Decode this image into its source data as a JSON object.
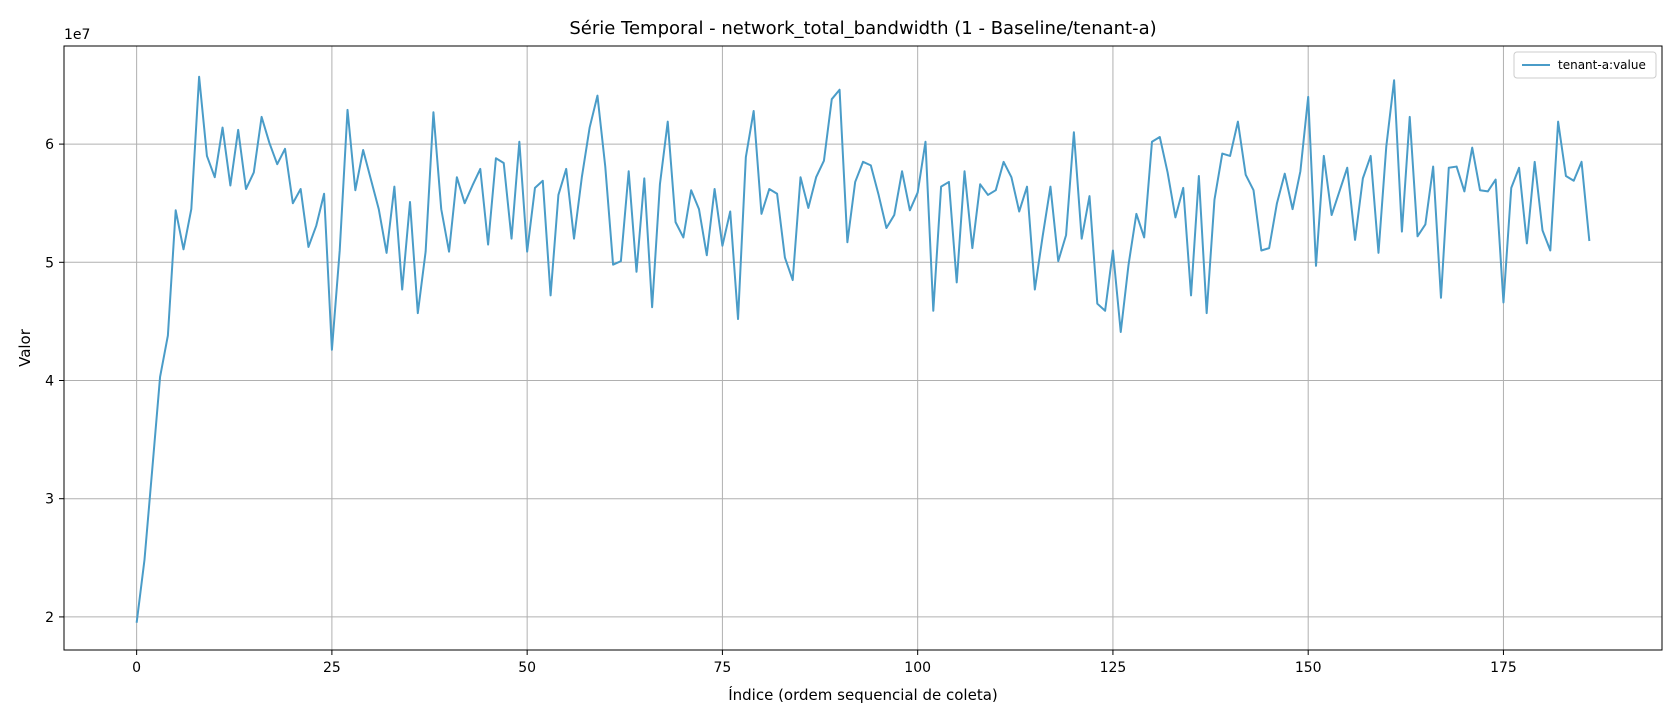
{
  "chart_data": {
    "type": "line",
    "title": "Série Temporal - network_total_bandwidth (1 - Baseline/tenant-a)",
    "xlabel": "Índice (ordem sequencial de coleta)",
    "ylabel": "Valor",
    "y_multiplier_label": "1e7",
    "xlim": [
      -9.3,
      195.3
    ],
    "ylim": [
      1.72,
      6.83
    ],
    "x_ticks": [
      0,
      25,
      50,
      75,
      100,
      125,
      150,
      175
    ],
    "y_ticks": [
      2,
      3,
      4,
      5,
      6
    ],
    "grid": true,
    "legend_position": "top-right",
    "series": [
      {
        "name": "tenant-a:value",
        "color": "#4a9cc8",
        "x_start": 0,
        "x_step": 1,
        "values": [
          1.95,
          2.48,
          3.25,
          4.03,
          4.38,
          5.44,
          5.11,
          5.45,
          6.57,
          5.9,
          5.72,
          6.14,
          5.65,
          6.12,
          5.62,
          5.76,
          6.23,
          6.01,
          5.83,
          5.96,
          5.5,
          5.62,
          5.13,
          5.31,
          5.58,
          4.26,
          5.1,
          6.29,
          5.61,
          5.95,
          5.7,
          5.45,
          5.08,
          5.64,
          4.77,
          5.51,
          4.57,
          5.09,
          6.27,
          5.45,
          5.09,
          5.72,
          5.5,
          5.65,
          5.79,
          5.15,
          5.88,
          5.84,
          5.2,
          6.02,
          5.09,
          5.63,
          5.69,
          4.72,
          5.57,
          5.79,
          5.2,
          5.72,
          6.14,
          6.41,
          5.81,
          4.98,
          5.01,
          5.77,
          4.92,
          5.71,
          4.62,
          5.66,
          6.19,
          5.34,
          5.21,
          5.61,
          5.45,
          5.06,
          5.62,
          5.14,
          5.43,
          4.52,
          5.89,
          6.28,
          5.41,
          5.62,
          5.58,
          5.04,
          4.85,
          5.72,
          5.46,
          5.72,
          5.86,
          6.38,
          6.46,
          5.17,
          5.68,
          5.85,
          5.82,
          5.57,
          5.29,
          5.4,
          5.77,
          5.44,
          5.59,
          6.02,
          4.59,
          5.64,
          5.68,
          4.83,
          5.77,
          5.12,
          5.66,
          5.57,
          5.61,
          5.85,
          5.72,
          5.43,
          5.64,
          4.77,
          5.22,
          5.64,
          5.01,
          5.23,
          6.1,
          5.2,
          5.56,
          4.65,
          4.59,
          5.1,
          4.41,
          4.98,
          5.41,
          5.21,
          6.02,
          6.06,
          5.76,
          5.38,
          5.63,
          4.72,
          5.73,
          4.57,
          5.53,
          5.92,
          5.9,
          6.19,
          5.74,
          5.61,
          5.1,
          5.12,
          5.5,
          5.75,
          5.45,
          5.77,
          6.4,
          4.97,
          5.9,
          5.4,
          5.6,
          5.8,
          5.19,
          5.71,
          5.9,
          5.08,
          5.98,
          6.54,
          5.26,
          6.23,
          5.22,
          5.32,
          5.81,
          4.7,
          5.8,
          5.81,
          5.6,
          5.97,
          5.61,
          5.6,
          5.7,
          4.66,
          5.63,
          5.8,
          5.16,
          5.85,
          5.27,
          5.1,
          6.19,
          5.73,
          5.69,
          5.85,
          5.18
        ]
      }
    ]
  }
}
